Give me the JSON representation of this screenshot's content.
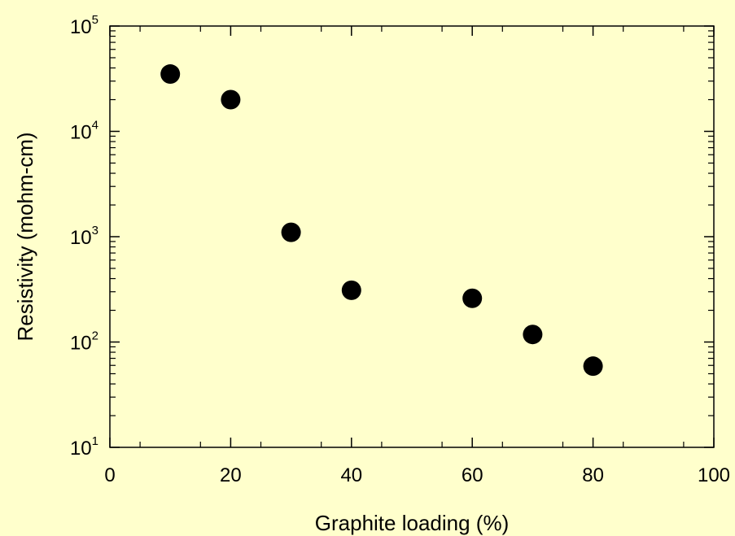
{
  "chart_data": {
    "type": "scatter",
    "title": "",
    "xlabel": "Graphite loading (%)",
    "ylabel": "Resistivity (mohm-cm)",
    "xlim": [
      0,
      100
    ],
    "ylim": [
      10,
      100000
    ],
    "yscale": "log",
    "grid": false,
    "x_ticks": [
      "0",
      "20",
      "40",
      "60",
      "80",
      "100"
    ],
    "y_ticks": [
      {
        "base": "10",
        "exp": "1"
      },
      {
        "base": "10",
        "exp": "2"
      },
      {
        "base": "10",
        "exp": "3"
      },
      {
        "base": "10",
        "exp": "4"
      },
      {
        "base": "10",
        "exp": "5"
      }
    ],
    "marker_color": "#000000",
    "points": [
      {
        "x": 10,
        "y": 35000
      },
      {
        "x": 20,
        "y": 20000
      },
      {
        "x": 30,
        "y": 1100
      },
      {
        "x": 40,
        "y": 310
      },
      {
        "x": 60,
        "y": 260
      },
      {
        "x": 70,
        "y": 118
      },
      {
        "x": 80,
        "y": 59
      }
    ]
  }
}
